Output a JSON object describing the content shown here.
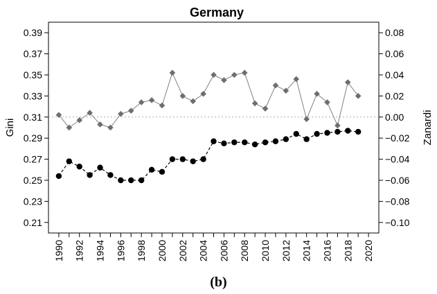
{
  "caption": "(b)",
  "chart_data": {
    "type": "line",
    "title": "Germany",
    "xlabel": "",
    "ylabel": "Gini",
    "y2label": "Zanardi",
    "xlim": [
      1989,
      2021
    ],
    "ylim": [
      0.2,
      0.4
    ],
    "y2lim": [
      -0.11,
      0.09
    ],
    "xticks": [
      "1990",
      "1992",
      "1994",
      "1996",
      "1998",
      "2000",
      "2002",
      "2004",
      "2006",
      "2008",
      "2010",
      "2012",
      "2014",
      "2016",
      "2018",
      "2020"
    ],
    "yticks": [
      "0.21",
      "0.23",
      "0.25",
      "0.27",
      "0.29",
      "0.31",
      "0.33",
      "0.35",
      "0.37",
      "0.39"
    ],
    "y2ticks": [
      "−0.10",
      "−0.08",
      "−0.06",
      "−0.04",
      "−0.02",
      "0.00",
      "0.02",
      "0.04",
      "0.06",
      "0.08"
    ],
    "reference_line_y2": 0.0,
    "grid": false,
    "series": [
      {
        "axis": "left",
        "marker": "circle",
        "line_style": "dashed",
        "color": "#000000",
        "x": [
          1990,
          1991,
          1992,
          1993,
          1994,
          1995,
          1996,
          1997,
          1998,
          1999,
          2000,
          2001,
          2002,
          2003,
          2004,
          2005,
          2006,
          2007,
          2008,
          2009,
          2010,
          2011,
          2012,
          2013,
          2014,
          2015,
          2016,
          2017,
          2018,
          2019
        ],
        "values": [
          0.254,
          0.268,
          0.263,
          0.255,
          0.262,
          0.255,
          0.25,
          0.25,
          0.25,
          0.26,
          0.258,
          0.27,
          0.27,
          0.268,
          0.27,
          0.287,
          0.285,
          0.286,
          0.286,
          0.284,
          0.286,
          0.287,
          0.289,
          0.294,
          0.289,
          0.294,
          0.295,
          0.296,
          0.297,
          0.296
        ]
      },
      {
        "axis": "right",
        "marker": "diamond",
        "line_style": "solid",
        "color": "#808080",
        "x": [
          1990,
          1991,
          1992,
          1993,
          1994,
          1995,
          1996,
          1997,
          1998,
          1999,
          2000,
          2001,
          2002,
          2003,
          2004,
          2005,
          2006,
          2007,
          2008,
          2009,
          2010,
          2011,
          2012,
          2013,
          2014,
          2015,
          2016,
          2017,
          2018,
          2019
        ],
        "values": [
          0.002,
          -0.01,
          -0.003,
          0.004,
          -0.007,
          -0.01,
          0.003,
          0.006,
          0.014,
          0.016,
          0.011,
          0.042,
          0.02,
          0.015,
          0.022,
          0.04,
          0.035,
          0.04,
          0.042,
          0.013,
          0.008,
          0.03,
          0.025,
          0.036,
          -0.002,
          0.022,
          0.014,
          -0.008,
          0.033,
          0.02
        ]
      }
    ]
  }
}
